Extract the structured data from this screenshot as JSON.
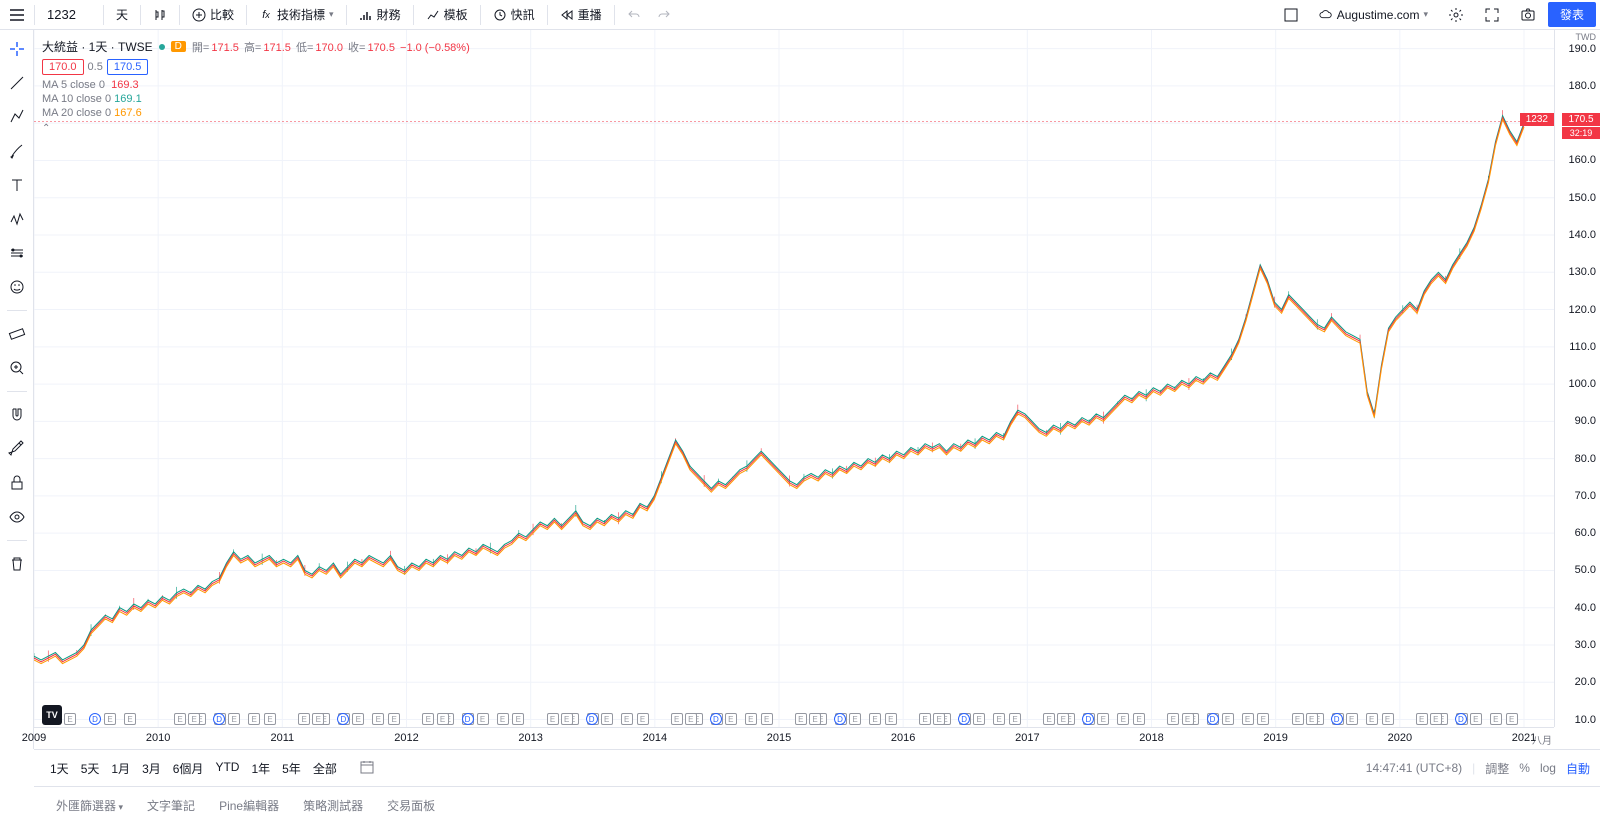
{
  "toolbar": {
    "symbol": "1232",
    "interval": "天",
    "compare": "比較",
    "indicators": "技術指標",
    "financials": "財務",
    "templates": "模板",
    "alert": "快訊",
    "replay": "重播",
    "account": "Augustime.com",
    "publish": "發表"
  },
  "legend": {
    "title": "大統益 · 1天 · TWSE",
    "ohlc_label_open": "開=",
    "ohlc_label_high": "高=",
    "ohlc_label_low": "低=",
    "ohlc_label_close": "收=",
    "open": "171.5",
    "high": "171.5",
    "low": "170.0",
    "close": "170.5",
    "change": "−1.0 (−0.58%)",
    "bid": "170.0",
    "mid": "0.5",
    "ask": "170.5",
    "ma5_label": "MA 5 close 0",
    "ma5_val": "169.3",
    "ma10_label": "MA 10 close 0",
    "ma10_val": "169.1",
    "ma20_label": "MA 20 close 0",
    "ma20_val": "167.6",
    "collapse": "⌃"
  },
  "chart": {
    "type": "line",
    "currency_label": "TWD",
    "background_color": "#ffffff",
    "grid_color": "#f0f3fa",
    "line_color": "#089981",
    "ma5_color": "#f23645",
    "ma10_color": "#26a69a",
    "ma20_color": "#ff9800",
    "y_ticks": [
      10.0,
      20.0,
      30.0,
      40.0,
      50.0,
      60.0,
      70.0,
      80.0,
      90.0,
      100.0,
      110.0,
      120.0,
      130.0,
      140.0,
      150.0,
      160.0,
      170.0,
      180.0,
      190.0
    ],
    "y_min": 8,
    "y_max": 195,
    "x_years": [
      "2009",
      "2010",
      "2011",
      "2012",
      "2013",
      "2014",
      "2015",
      "2016",
      "2017",
      "2018",
      "2019",
      "2020",
      "2021"
    ],
    "x_extra": "八月",
    "current_price": "170.5",
    "current_time_badge": "32:19",
    "symbol_badge": "1232",
    "series": [
      [
        0,
        27
      ],
      [
        0.5,
        26
      ],
      [
        1,
        27
      ],
      [
        1.5,
        28
      ],
      [
        2,
        26
      ],
      [
        2.5,
        27
      ],
      [
        3,
        28
      ],
      [
        3.5,
        30
      ],
      [
        4,
        34
      ],
      [
        4.5,
        36
      ],
      [
        5,
        38
      ],
      [
        5.5,
        37
      ],
      [
        6,
        40
      ],
      [
        6.5,
        39
      ],
      [
        7,
        41
      ],
      [
        7.5,
        40
      ],
      [
        8,
        42
      ],
      [
        8.5,
        41
      ],
      [
        9,
        43
      ],
      [
        9.5,
        42
      ],
      [
        10,
        44
      ],
      [
        10.5,
        45
      ],
      [
        11,
        44
      ],
      [
        11.5,
        46
      ],
      [
        12,
        45
      ],
      [
        12.5,
        47
      ],
      [
        13,
        48
      ],
      [
        13.5,
        52
      ],
      [
        14,
        55
      ],
      [
        14.5,
        53
      ],
      [
        15,
        54
      ],
      [
        15.5,
        52
      ],
      [
        16,
        53
      ],
      [
        16.5,
        54
      ],
      [
        17,
        52
      ],
      [
        17.5,
        53
      ],
      [
        18,
        52
      ],
      [
        18.5,
        54
      ],
      [
        19,
        50
      ],
      [
        19.5,
        49
      ],
      [
        20,
        51
      ],
      [
        20.5,
        50
      ],
      [
        21,
        52
      ],
      [
        21.5,
        49
      ],
      [
        22,
        51
      ],
      [
        22.5,
        53
      ],
      [
        23,
        52
      ],
      [
        23.5,
        54
      ],
      [
        24,
        53
      ],
      [
        24.5,
        52
      ],
      [
        25,
        54
      ],
      [
        25.5,
        51
      ],
      [
        26,
        50
      ],
      [
        26.5,
        52
      ],
      [
        27,
        51
      ],
      [
        27.5,
        53
      ],
      [
        28,
        52
      ],
      [
        28.5,
        54
      ],
      [
        29,
        53
      ],
      [
        29.5,
        55
      ],
      [
        30,
        54
      ],
      [
        30.5,
        56
      ],
      [
        31,
        55
      ],
      [
        31.5,
        57
      ],
      [
        32,
        56
      ],
      [
        32.5,
        55
      ],
      [
        33,
        57
      ],
      [
        33.5,
        58
      ],
      [
        34,
        60
      ],
      [
        34.5,
        59
      ],
      [
        35,
        61
      ],
      [
        35.5,
        63
      ],
      [
        36,
        62
      ],
      [
        36.5,
        64
      ],
      [
        37,
        62
      ],
      [
        37.5,
        64
      ],
      [
        38,
        66
      ],
      [
        38.5,
        63
      ],
      [
        39,
        62
      ],
      [
        39.5,
        64
      ],
      [
        40,
        63
      ],
      [
        40.5,
        65
      ],
      [
        41,
        64
      ],
      [
        41.5,
        66
      ],
      [
        42,
        65
      ],
      [
        42.5,
        68
      ],
      [
        43,
        67
      ],
      [
        43.5,
        70
      ],
      [
        44,
        75
      ],
      [
        44.5,
        80
      ],
      [
        45,
        85
      ],
      [
        45.5,
        82
      ],
      [
        46,
        78
      ],
      [
        46.5,
        76
      ],
      [
        47,
        74
      ],
      [
        47.5,
        72
      ],
      [
        48,
        74
      ],
      [
        48.5,
        73
      ],
      [
        49,
        75
      ],
      [
        49.5,
        77
      ],
      [
        50,
        78
      ],
      [
        50.5,
        80
      ],
      [
        51,
        82
      ],
      [
        51.5,
        80
      ],
      [
        52,
        78
      ],
      [
        52.5,
        76
      ],
      [
        53,
        74
      ],
      [
        53.5,
        73
      ],
      [
        54,
        75
      ],
      [
        54.5,
        76
      ],
      [
        55,
        75
      ],
      [
        55.5,
        77
      ],
      [
        56,
        76
      ],
      [
        56.5,
        78
      ],
      [
        57,
        77
      ],
      [
        57.5,
        79
      ],
      [
        58,
        78
      ],
      [
        58.5,
        80
      ],
      [
        59,
        79
      ],
      [
        59.5,
        81
      ],
      [
        60,
        80
      ],
      [
        60.5,
        82
      ],
      [
        61,
        81
      ],
      [
        61.5,
        83
      ],
      [
        62,
        82
      ],
      [
        62.5,
        84
      ],
      [
        63,
        83
      ],
      [
        63.5,
        84
      ],
      [
        64,
        82
      ],
      [
        64.5,
        84
      ],
      [
        65,
        83
      ],
      [
        65.5,
        85
      ],
      [
        66,
        84
      ],
      [
        66.5,
        86
      ],
      [
        67,
        85
      ],
      [
        67.5,
        87
      ],
      [
        68,
        86
      ],
      [
        68.5,
        90
      ],
      [
        69,
        93
      ],
      [
        69.5,
        92
      ],
      [
        70,
        90
      ],
      [
        70.5,
        88
      ],
      [
        71,
        87
      ],
      [
        71.5,
        89
      ],
      [
        72,
        88
      ],
      [
        72.5,
        90
      ],
      [
        73,
        89
      ],
      [
        73.5,
        91
      ],
      [
        74,
        90
      ],
      [
        74.5,
        92
      ],
      [
        75,
        91
      ],
      [
        75.5,
        93
      ],
      [
        76,
        95
      ],
      [
        76.5,
        97
      ],
      [
        77,
        96
      ],
      [
        77.5,
        98
      ],
      [
        78,
        97
      ],
      [
        78.5,
        99
      ],
      [
        79,
        98
      ],
      [
        79.5,
        100
      ],
      [
        80,
        99
      ],
      [
        80.5,
        101
      ],
      [
        81,
        100
      ],
      [
        81.5,
        102
      ],
      [
        82,
        101
      ],
      [
        82.5,
        103
      ],
      [
        83,
        102
      ],
      [
        83.5,
        105
      ],
      [
        84,
        108
      ],
      [
        84.5,
        112
      ],
      [
        85,
        118
      ],
      [
        85.5,
        125
      ],
      [
        86,
        132
      ],
      [
        86.5,
        128
      ],
      [
        87,
        122
      ],
      [
        87.5,
        120
      ],
      [
        88,
        124
      ],
      [
        88.5,
        122
      ],
      [
        89,
        120
      ],
      [
        89.5,
        118
      ],
      [
        90,
        116
      ],
      [
        90.5,
        115
      ],
      [
        91,
        118
      ],
      [
        91.5,
        116
      ],
      [
        92,
        114
      ],
      [
        92.5,
        113
      ],
      [
        93,
        112
      ],
      [
        93.5,
        98
      ],
      [
        94,
        92
      ],
      [
        94.5,
        105
      ],
      [
        95,
        115
      ],
      [
        95.5,
        118
      ],
      [
        96,
        120
      ],
      [
        96.5,
        122
      ],
      [
        97,
        120
      ],
      [
        97.5,
        125
      ],
      [
        98,
        128
      ],
      [
        98.5,
        130
      ],
      [
        99,
        128
      ],
      [
        99.5,
        132
      ],
      [
        100,
        135
      ],
      [
        100.5,
        138
      ],
      [
        101,
        142
      ],
      [
        101.5,
        148
      ],
      [
        102,
        155
      ],
      [
        102.5,
        165
      ],
      [
        103,
        172
      ],
      [
        103.5,
        168
      ],
      [
        104,
        165
      ],
      [
        104.5,
        170
      ]
    ]
  },
  "ranges": {
    "items": [
      "1天",
      "5天",
      "1月",
      "3月",
      "6個月",
      "YTD",
      "1年",
      "5年",
      "全部"
    ],
    "clock": "14:47:41 (UTC+8)",
    "adjust": "調整",
    "percent": "%",
    "log": "log",
    "auto": "自動"
  },
  "tabs": {
    "items": [
      "外匯篩選器",
      "文字筆記",
      "Pine編輯器",
      "策略測試器",
      "交易面板"
    ]
  },
  "colors": {
    "bid_color": "#f23645",
    "ask_color": "#2962ff",
    "border": "#e0e3eb"
  }
}
